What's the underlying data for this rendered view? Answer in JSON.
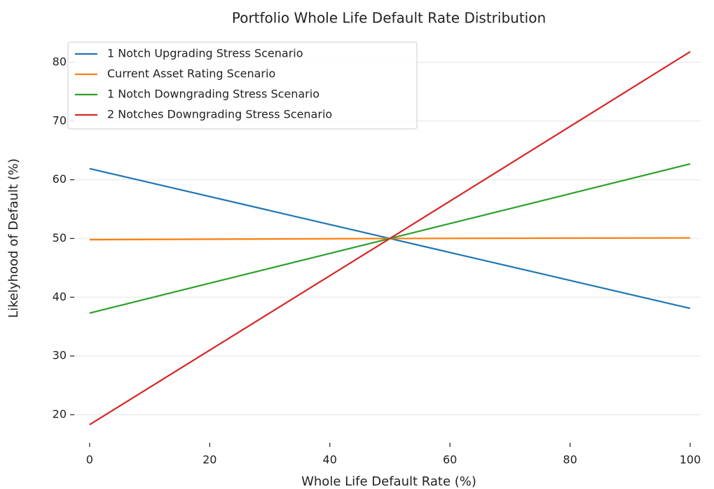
{
  "chart_data": {
    "type": "line",
    "title": "Portfolio Whole Life Default Rate Distribution",
    "x_label": "Whole Life Default Rate (%)",
    "y_label": "Likelyhood of Default (%)",
    "x": [
      0,
      50,
      100
    ],
    "series": [
      {
        "name": "1 Notch Upgrading Stress Scenario",
        "color": "#1f77b4",
        "values": [
          61.9,
          50,
          38.1
        ]
      },
      {
        "name": "Current Asset Rating Scenario",
        "color": "#ff7f0e",
        "values": [
          49.8,
          50,
          50.1
        ]
      },
      {
        "name": "1 Notch Downgrading Stress Scenario",
        "color": "#2ca02c",
        "values": [
          37.3,
          50,
          62.7
        ]
      },
      {
        "name": "2 Notches Downgrading Stress Scenario",
        "color": "#d62728",
        "values": [
          18.3,
          50,
          81.8
        ]
      }
    ],
    "xlim": [
      -5,
      103.5
    ],
    "xticks": [
      0,
      20,
      40,
      60,
      80,
      100
    ],
    "ylim": [
      15.1,
      85
    ],
    "yticks": [
      20,
      30,
      40,
      50,
      60,
      70,
      80
    ],
    "grid": true,
    "legend": "upper-left"
  }
}
